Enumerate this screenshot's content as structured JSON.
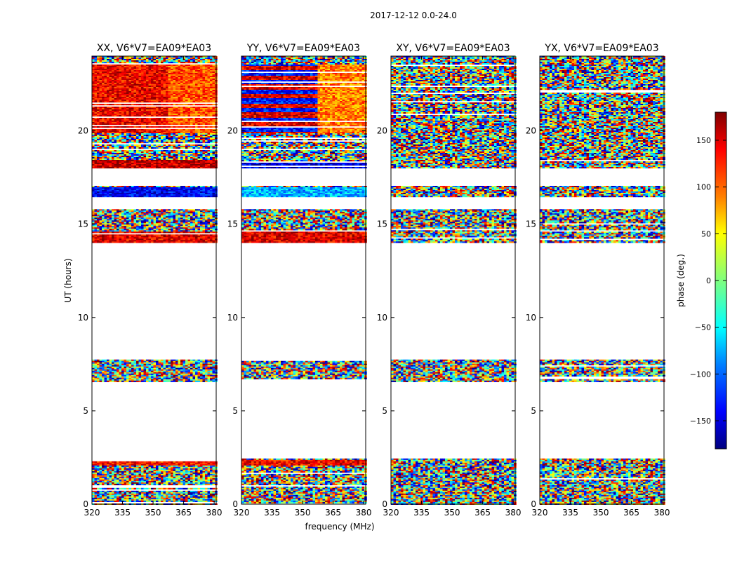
{
  "suptitle": "2017-12-12 0.0-24.0",
  "chart_data": {
    "type": "heatmap",
    "xlabel": "frequency (MHz)",
    "ylabel": "UT (hours)",
    "xlim": [
      320,
      381
    ],
    "ylim": [
      0,
      24
    ],
    "x_ticks": [
      "320",
      "335",
      "350",
      "365",
      "380"
    ],
    "y_ticks": [
      "0",
      "5",
      "10",
      "15",
      "20"
    ],
    "colorbar": {
      "label": "phase (deg.)",
      "range": [
        -180,
        180
      ],
      "ticks": [
        "−150",
        "−100",
        "−50",
        "0",
        "50",
        "100",
        "150"
      ],
      "cmap": [
        "#00007f",
        "#0000ff",
        "#007fff",
        "#00ffff",
        "#7fff7f",
        "#ffff00",
        "#ff7f00",
        "#ff0000",
        "#7f0000"
      ]
    },
    "data_bands_ut": [
      [
        0.0,
        2.45
      ],
      [
        6.55,
        7.75
      ],
      [
        14.0,
        15.8
      ],
      [
        16.5,
        17.05
      ],
      [
        18.0,
        24.0
      ]
    ],
    "panels": [
      {
        "title": "XX, V6*V7=EA09*EA03",
        "dominant_phase": "warm (~+120 to +180 deg) in 18-24 h block, blue (~-150) near 16.7 h, otherwise random"
      },
      {
        "title": "YY, V6*V7=EA09*EA03",
        "dominant_phase": "warm/blue stripes in 18-24 h block, cyan/blue near 16.7 h, otherwise random"
      },
      {
        "title": "XY, V6*V7=EA09*EA03",
        "dominant_phase": "random (noise-like) phases"
      },
      {
        "title": "YX, V6*V7=EA09*EA03",
        "dominant_phase": "random (noise-like) phases"
      }
    ]
  }
}
